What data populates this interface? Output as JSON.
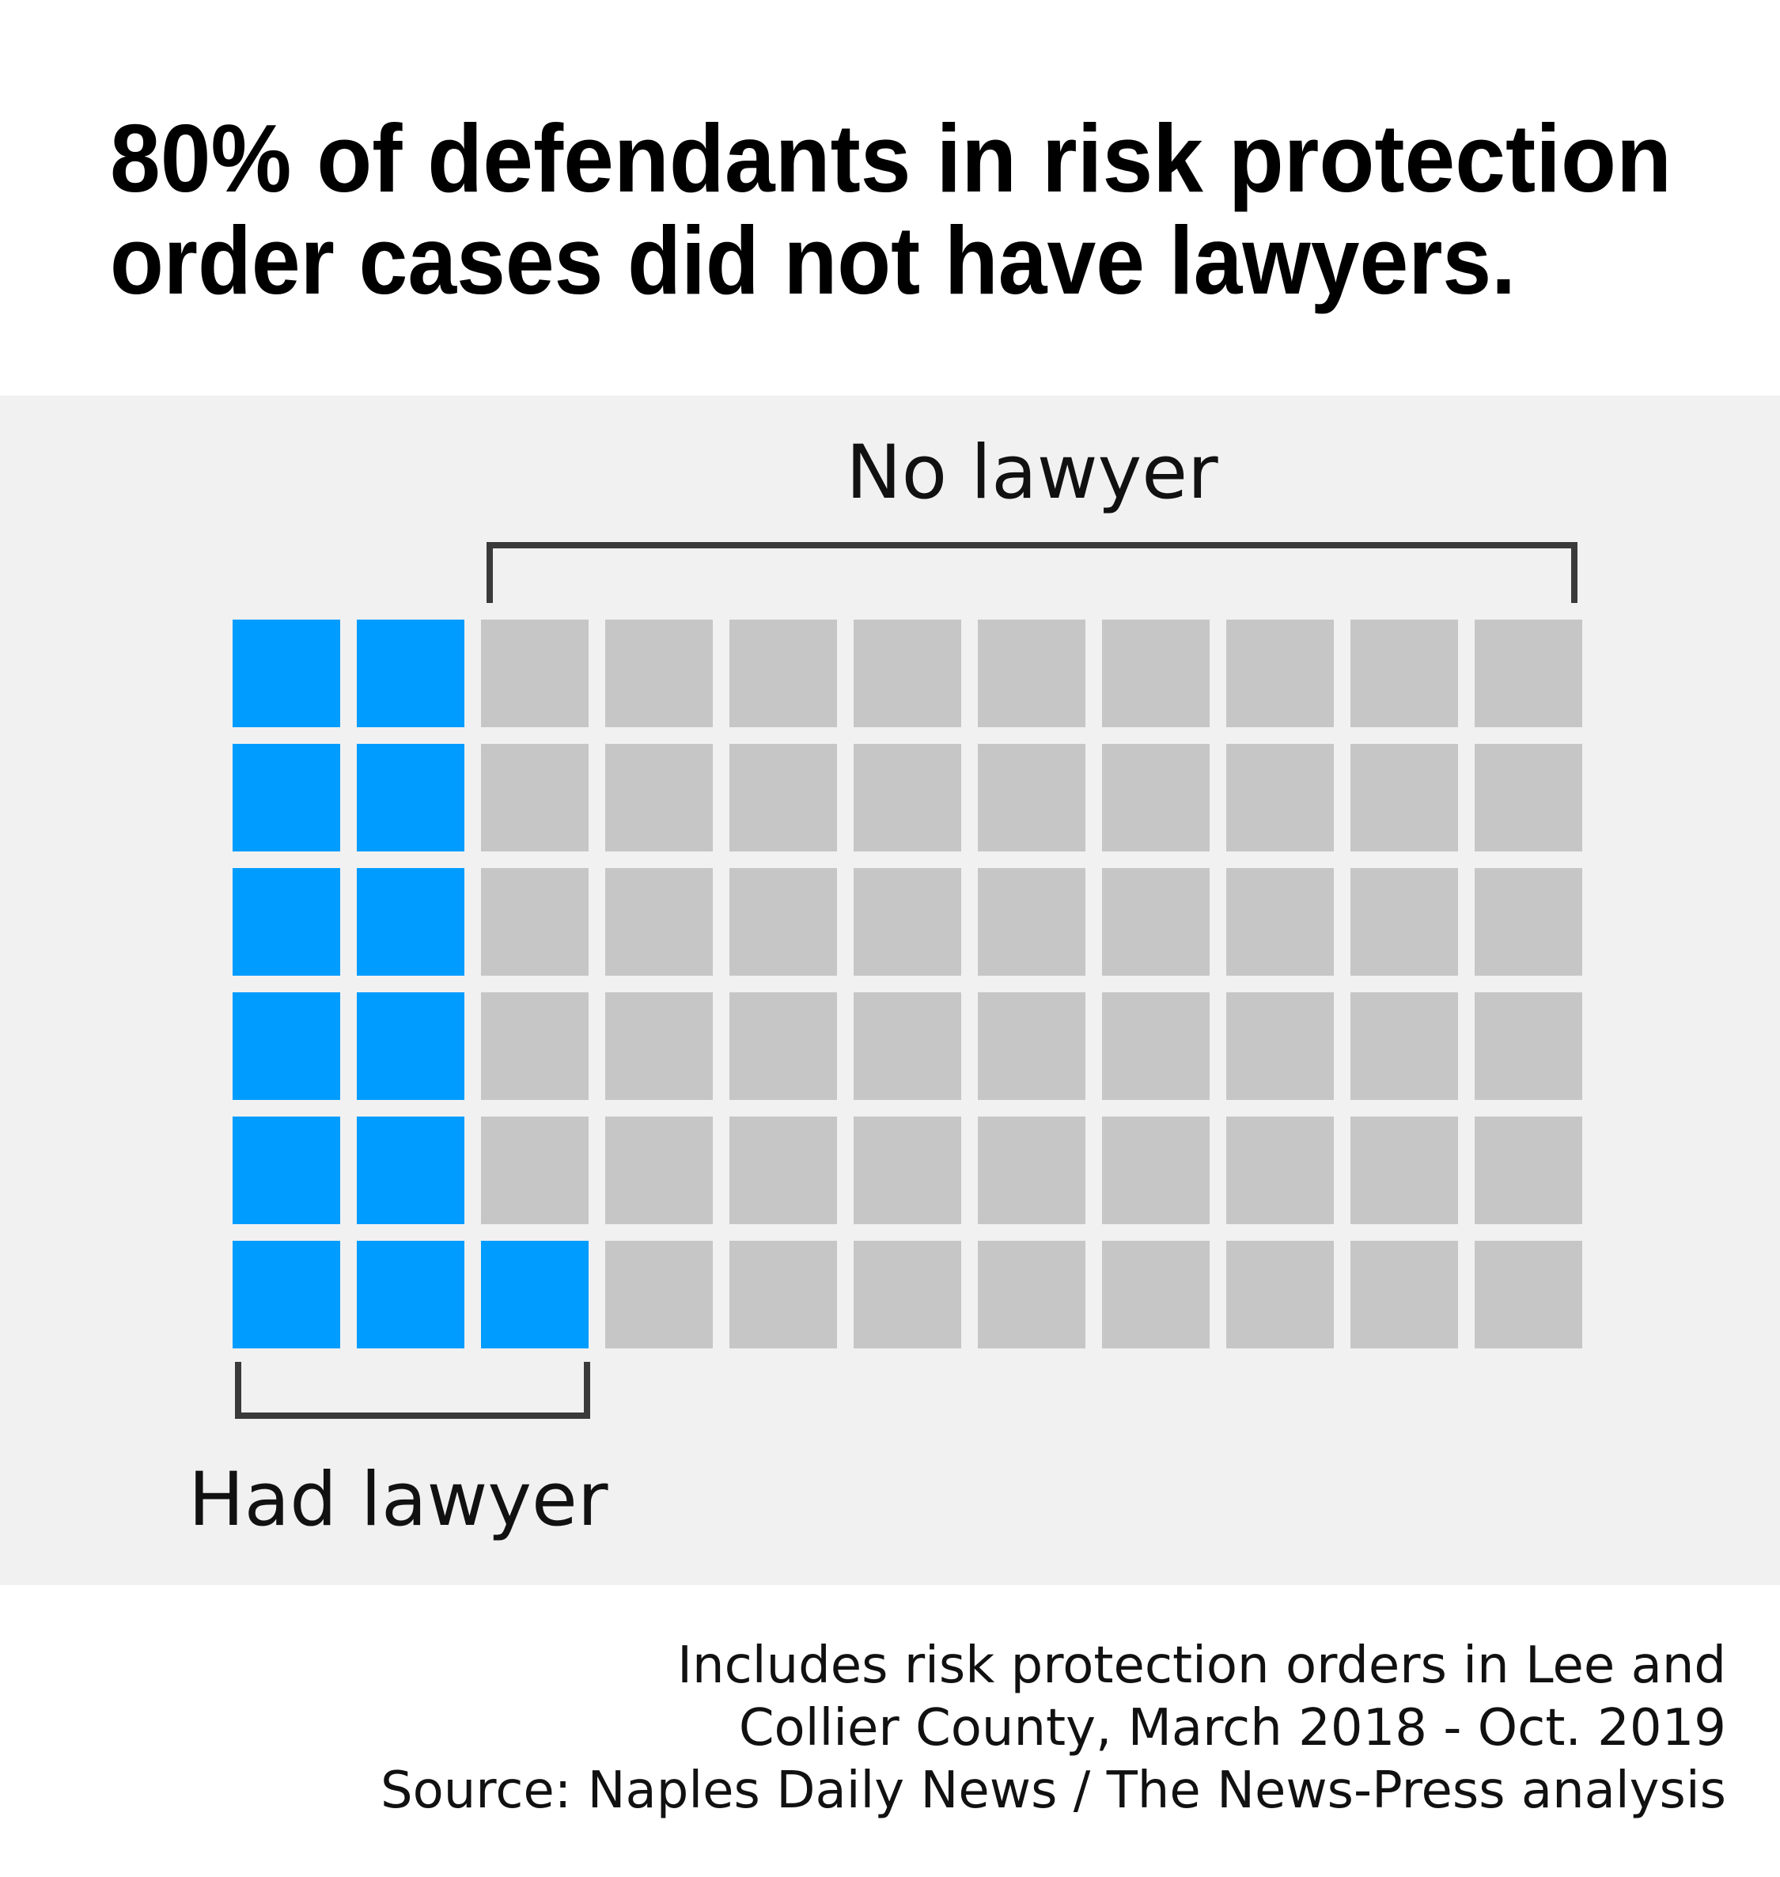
{
  "chart_data": {
    "type": "waffle",
    "title_lines": [
      "80% of defendants in risk protection",
      "order cases did not have lawyers."
    ],
    "rows": 6,
    "columns": 11,
    "series": [
      {
        "name": "Had lawyer",
        "color": "#009cff",
        "value": 13
      },
      {
        "name": "No lawyer",
        "color": "#c6c6c6",
        "value": 53
      }
    ],
    "notes": [
      "Includes risk protection orders in Lee and",
      "Collier County, March 2018 - Oct. 2019",
      "Source: Naples Daily News / The News-Press analysis"
    ]
  }
}
